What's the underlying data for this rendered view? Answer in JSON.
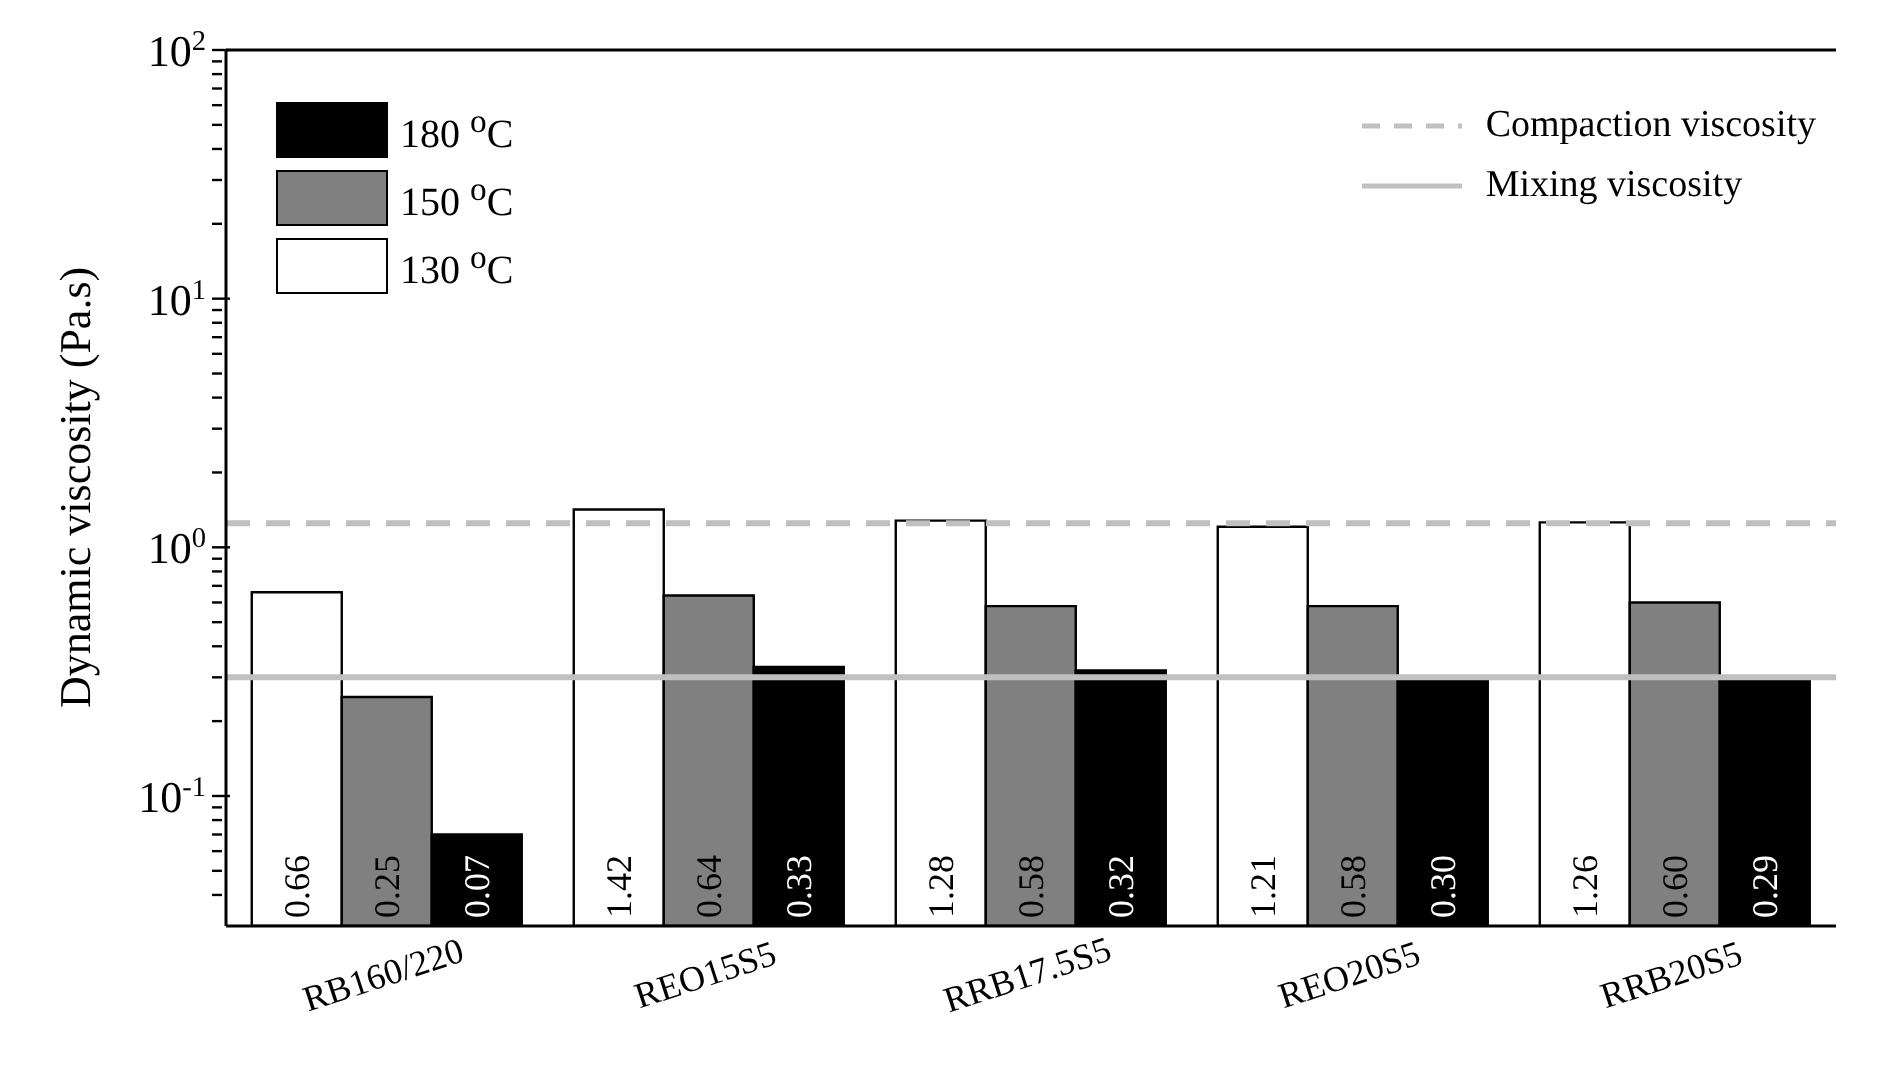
{
  "chart_data": {
    "type": "bar",
    "ylabel": "Dynamic viscosity (Pa.s)",
    "log": "y",
    "legend": "top left",
    "categories": [
      "RB160/220",
      "REO15S5",
      "RRB17.5S5",
      "REO20S5",
      "RRB20S5"
    ],
    "series": [
      {
        "name": "130 $^{o}$C",
        "color": "#ffffff",
        "values": [
          0.66,
          1.42,
          1.28,
          1.21,
          1.26
        ],
        "value_labels": [
          "0.66",
          "1.42",
          "1.28",
          "1.21",
          "1.26"
        ]
      },
      {
        "name": "150 $^{o}$C",
        "color": "#808080",
        "values": [
          0.25,
          0.64,
          0.58,
          0.58,
          0.6
        ],
        "value_labels": [
          "0.25",
          "0.64",
          "0.58",
          "0.58",
          "0.60"
        ]
      },
      {
        "name": "180 $^{o}$C",
        "color": "#000000",
        "values": [
          0.07,
          0.33,
          0.32,
          0.3,
          0.29
        ],
        "value_labels": [
          "0.07",
          "0.33",
          "0.32",
          "0.30",
          "0.29"
        ]
      }
    ],
    "ylim": [
      0.03,
      100
    ],
    "yticks": [
      {
        "value": 0.04,
        "label": null
      },
      {
        "value": 0.05,
        "label": null
      },
      {
        "value": 0.06,
        "label": null
      },
      {
        "value": 0.07,
        "label": null
      },
      {
        "value": 0.08,
        "label": null
      },
      {
        "value": 0.09,
        "label": null
      },
      {
        "value": 0.1,
        "label": "10$^{-1}$"
      },
      {
        "value": 0.2,
        "label": null
      },
      {
        "value": 0.3,
        "label": null
      },
      {
        "value": 0.4,
        "label": null
      },
      {
        "value": 0.5,
        "label": null
      },
      {
        "value": 0.6,
        "label": null
      },
      {
        "value": 0.7,
        "label": null
      },
      {
        "value": 0.8,
        "label": null
      },
      {
        "value": 0.9,
        "label": null
      },
      {
        "value": 1,
        "label": "10$^{0}$"
      },
      {
        "value": 2,
        "label": null
      },
      {
        "value": 3,
        "label": null
      },
      {
        "value": 4,
        "label": null
      },
      {
        "value": 5,
        "label": null
      },
      {
        "value": 6,
        "label": null
      },
      {
        "value": 7,
        "label": null
      },
      {
        "value": 8,
        "label": null
      },
      {
        "value": 9,
        "label": null
      },
      {
        "value": 10,
        "label": "10$^{1}$"
      },
      {
        "value": 20,
        "label": null
      },
      {
        "value": 30,
        "label": null
      },
      {
        "value": 40,
        "label": null
      },
      {
        "value": 50,
        "label": null
      },
      {
        "value": 60,
        "label": null
      },
      {
        "value": 70,
        "label": null
      },
      {
        "value": 80,
        "label": null
      },
      {
        "value": 90,
        "label": null
      },
      {
        "value": 100,
        "label": "10$^{2}$"
      }
    ],
    "ref_lines": [
      {
        "axis": "y",
        "value": 1.25,
        "label": "Compaction viscosity",
        "color": "#c0c0c0",
        "line_style": "dashed"
      },
      {
        "axis": "y",
        "value": 0.3,
        "label": "Mixing viscosity",
        "color": "#c0c0c0",
        "line_style": "solid"
      }
    ]
  }
}
